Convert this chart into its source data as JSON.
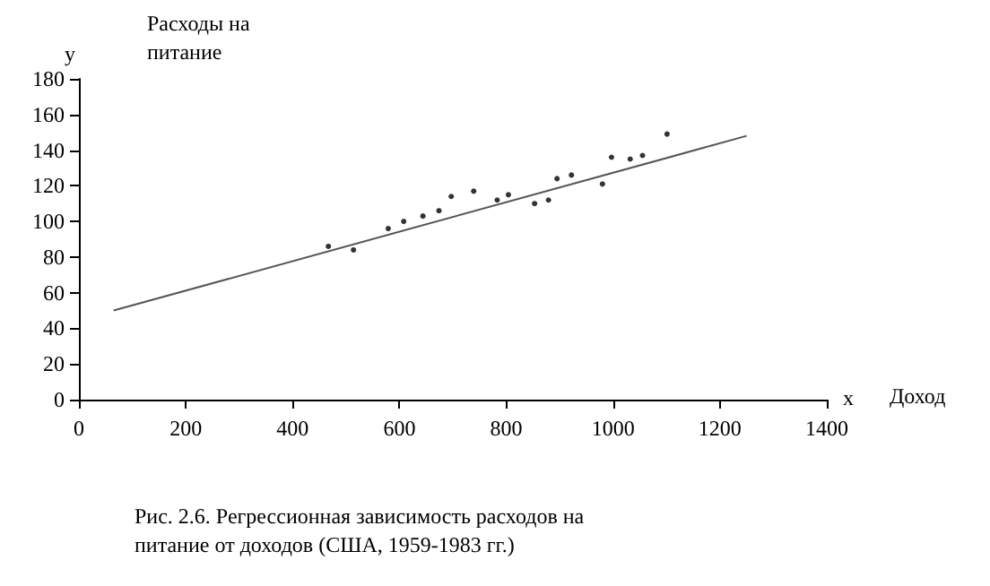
{
  "chart_data": {
    "type": "scatter",
    "xlabel": "Доход",
    "ylabel": "Расходы на питание",
    "annotations": [
      "у",
      "х",
      "Рис. 2.6. Регрессионная зависимость расходов на питание от доходов (США, 1959-1983 гг.)"
    ],
    "series": [
      {
        "color": "#000000",
        "marker": "circle",
        "x": [
          467,
          514,
          579,
          608,
          644,
          674,
          697,
          739,
          783,
          804,
          853,
          879,
          895,
          922,
          980,
          997,
          1032,
          1055,
          1101
        ],
        "values": [
          86,
          84,
          96,
          100,
          103,
          106,
          114,
          117,
          112,
          115,
          110,
          112,
          124,
          126,
          121,
          136,
          135,
          137,
          149
        ]
      },
      {
        "type": "line",
        "color": "#555555",
        "marker": "none",
        "x": [
          65,
          1250
        ],
        "values": [
          50,
          148
        ]
      }
    ],
    "xlim": [
      0,
      1400
    ],
    "xticks": [
      0,
      200,
      400,
      600,
      800,
      1000,
      1200,
      1400
    ],
    "ylim": [
      0,
      180
    ],
    "yticks": [
      0,
      20,
      40,
      60,
      80,
      100,
      120,
      140,
      160,
      180
    ],
    "grid": false
  }
}
